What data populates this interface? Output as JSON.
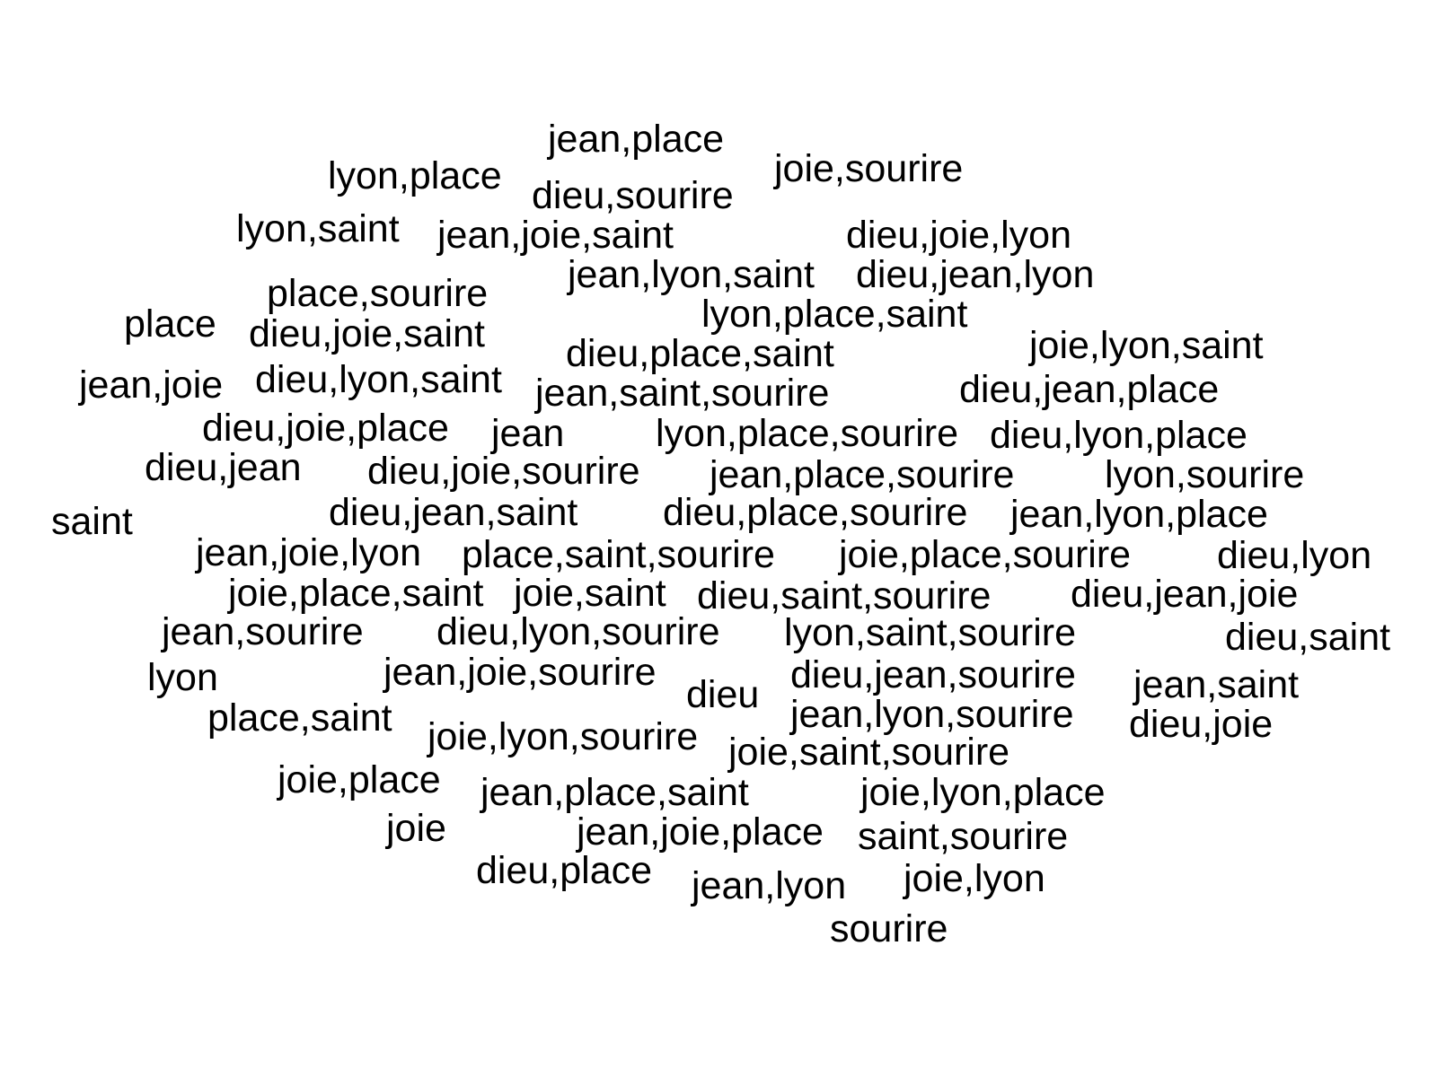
{
  "words": [
    "jean,place",
    "lyon,place",
    "joie,sourire",
    "dieu,sourire",
    "lyon,saint",
    "jean,joie,saint",
    "dieu,joie,lyon",
    "jean,lyon,saint",
    "dieu,jean,lyon",
    "place,sourire",
    "lyon,place,saint",
    "place",
    "dieu,joie,saint",
    "joie,lyon,saint",
    "dieu,place,saint",
    "jean,joie",
    "dieu,lyon,saint",
    "jean,saint,sourire",
    "dieu,jean,place",
    "dieu,joie,place",
    "jean",
    "lyon,place,sourire",
    "dieu,lyon,place",
    "dieu,jean",
    "dieu,joie,sourire",
    "jean,place,sourire",
    "lyon,sourire",
    "saint",
    "dieu,jean,saint",
    "dieu,place,sourire",
    "jean,lyon,place",
    "jean,joie,lyon",
    "place,saint,sourire",
    "joie,place,sourire",
    "dieu,lyon",
    "joie,place,saint",
    "joie,saint",
    "dieu,saint,sourire",
    "dieu,jean,joie",
    "jean,sourire",
    "dieu,lyon,sourire",
    "lyon,saint,sourire",
    "dieu,saint",
    "lyon",
    "jean,joie,sourire",
    "dieu",
    "dieu,jean,sourire",
    "jean,saint",
    "place,saint",
    "jean,lyon,sourire",
    "dieu,joie",
    "joie,lyon,sourire",
    "joie,saint,sourire",
    "joie,place",
    "jean,place,saint",
    "joie,lyon,place",
    "joie",
    "jean,joie,place",
    "saint,sourire",
    "dieu,place",
    "jean,lyon",
    "joie,lyon",
    "sourire"
  ],
  "colors": {
    "text": "#000000",
    "background": "#ffffff"
  }
}
